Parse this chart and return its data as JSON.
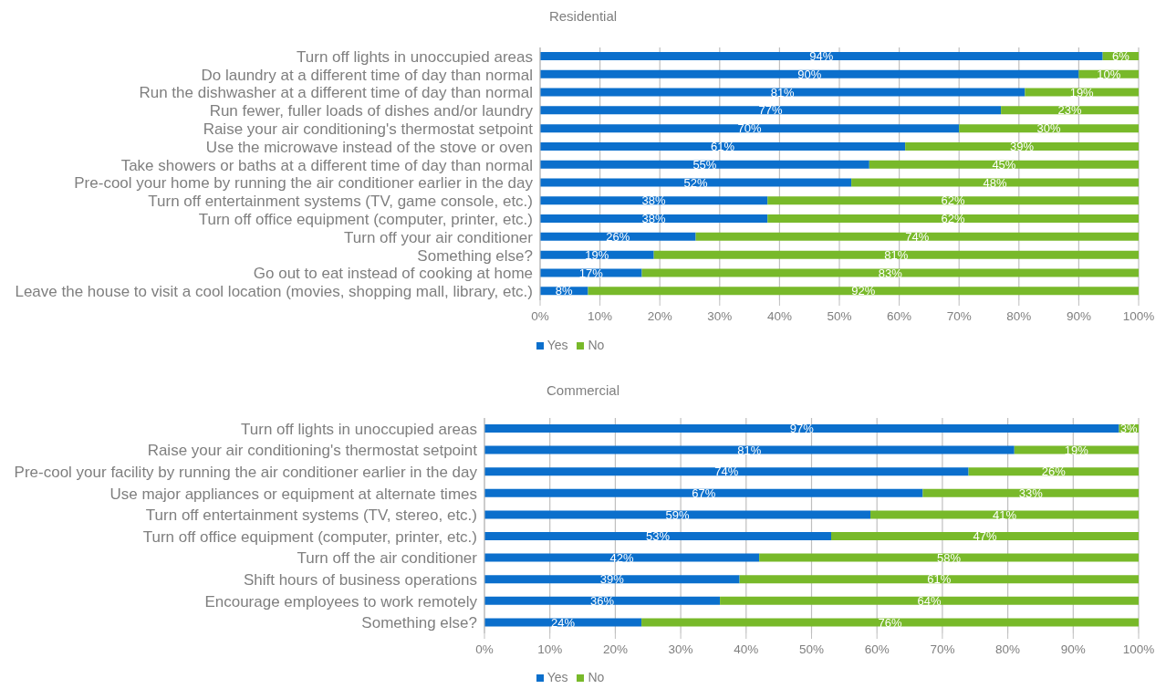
{
  "chart_data": [
    {
      "type": "bar",
      "orientation": "horizontal",
      "stacked": true,
      "title": "Residential",
      "categories": [
        "Turn off lights in unoccupied areas",
        "Do laundry at a different time of day than normal",
        "Run the dishwasher at a different time of day than normal",
        "Run fewer, fuller loads of dishes and/or laundry",
        "Raise your air conditioning's thermostat setpoint",
        "Use the microwave instead of the stove or oven",
        "Take showers or baths at a different time of day than normal",
        "Pre-cool your home by running the air conditioner earlier in the day",
        "Turn off entertainment systems (TV, game console, etc.)",
        "Turn off office equipment (computer, printer, etc.)",
        "Turn off your air conditioner",
        "Something else?",
        "Go out to eat instead of cooking at home",
        "Leave the house to visit a cool location (movies, shopping mall, library, etc.)"
      ],
      "series": [
        {
          "name": "Yes",
          "color": "#0b6fcc",
          "values": [
            94,
            90,
            81,
            77,
            70,
            61,
            55,
            52,
            38,
            38,
            26,
            19,
            17,
            8
          ],
          "value_labels": [
            "94%",
            "90%",
            "81%",
            "77%",
            "70%",
            "61%",
            "55%",
            "52%",
            "38%",
            "38%",
            "26%",
            "19%",
            "17%",
            "8%"
          ]
        },
        {
          "name": "No",
          "color": "#78b92a",
          "values": [
            6,
            10,
            19,
            23,
            30,
            39,
            45,
            48,
            62,
            62,
            74,
            81,
            83,
            92
          ],
          "value_labels": [
            "6%",
            "10%",
            "19%",
            "23%",
            "30%",
            "39%",
            "45%",
            "48%",
            "62%",
            "62%",
            "74%",
            "81%",
            "83%",
            "92%"
          ]
        }
      ],
      "xlim": [
        0,
        100
      ],
      "xticks": [
        {
          "value": 0,
          "label": "0%"
        },
        {
          "value": 10,
          "label": "10%"
        },
        {
          "value": 20,
          "label": "20%"
        },
        {
          "value": 30,
          "label": "30%"
        },
        {
          "value": 40,
          "label": "40%"
        },
        {
          "value": 50,
          "label": "50%"
        },
        {
          "value": 60,
          "label": "60%"
        },
        {
          "value": 70,
          "label": "70%"
        },
        {
          "value": 80,
          "label": "80%"
        },
        {
          "value": 90,
          "label": "90%"
        },
        {
          "value": 100,
          "label": "100%"
        }
      ],
      "grid": "x",
      "legend": "bottom"
    },
    {
      "type": "bar",
      "orientation": "horizontal",
      "stacked": true,
      "title": "Commercial",
      "categories": [
        "Turn off lights in unoccupied areas",
        "Raise your air conditioning's thermostat setpoint",
        "Pre-cool your facility by running the air conditioner earlier in the day",
        "Use major appliances or equipment at alternate times",
        "Turn off entertainment systems (TV, stereo, etc.)",
        "Turn off office equipment (computer, printer, etc.)",
        "Turn off the air conditioner",
        "Shift hours of business operations",
        "Encourage employees to work remotely",
        "Something else?"
      ],
      "series": [
        {
          "name": "Yes",
          "color": "#0b6fcc",
          "values": [
            97,
            81,
            74,
            67,
            59,
            53,
            42,
            39,
            36,
            24
          ],
          "value_labels": [
            "97%",
            "81%",
            "74%",
            "67%",
            "59%",
            "53%",
            "42%",
            "39%",
            "36%",
            "24%"
          ]
        },
        {
          "name": "No",
          "color": "#78b92a",
          "values": [
            3,
            19,
            26,
            33,
            41,
            47,
            58,
            61,
            64,
            76
          ],
          "value_labels": [
            "3%",
            "19%",
            "26%",
            "33%",
            "41%",
            "47%",
            "58%",
            "61%",
            "64%",
            "76%"
          ]
        }
      ],
      "xlim": [
        0,
        100
      ],
      "xticks": [
        {
          "value": 0,
          "label": "0%"
        },
        {
          "value": 10,
          "label": "10%"
        },
        {
          "value": 20,
          "label": "20%"
        },
        {
          "value": 30,
          "label": "30%"
        },
        {
          "value": 40,
          "label": "40%"
        },
        {
          "value": 50,
          "label": "50%"
        },
        {
          "value": 60,
          "label": "60%"
        },
        {
          "value": 70,
          "label": "70%"
        },
        {
          "value": 80,
          "label": "80%"
        },
        {
          "value": 90,
          "label": "90%"
        },
        {
          "value": 100,
          "label": "100%"
        }
      ],
      "grid": "x",
      "legend": "bottom"
    }
  ]
}
